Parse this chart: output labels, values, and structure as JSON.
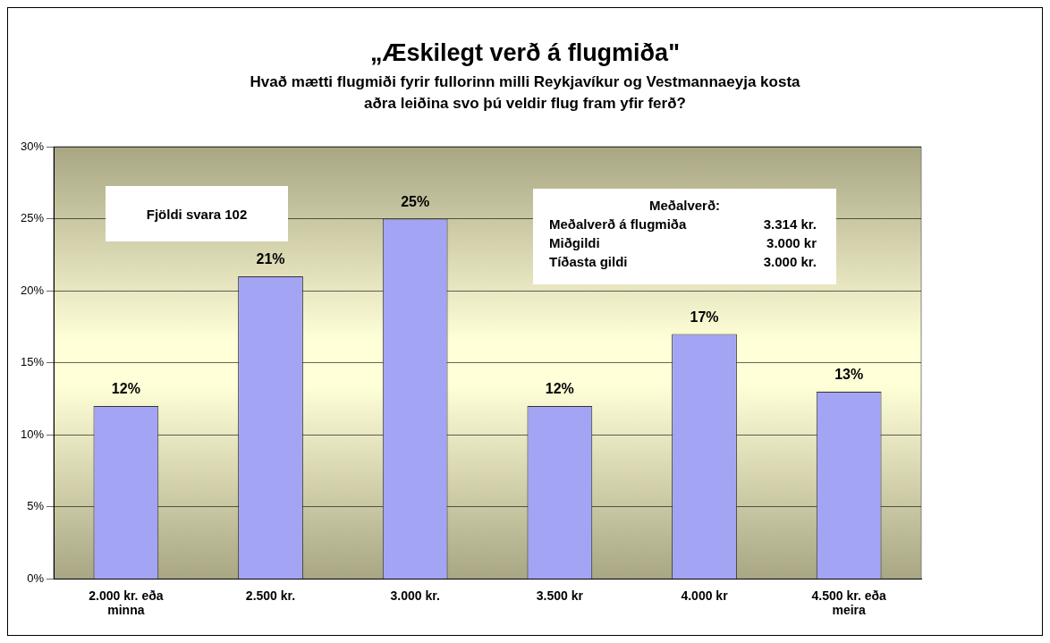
{
  "chart_data": {
    "type": "bar",
    "title": "„Æskilegt verð á flugmiða\"",
    "subtitle": "Hvað mætti flugmiði  fyrir fullorinn milli Reykjavíkur og  Vestmannaeyja kosta\naðra leiðina svo þú veldir flug fram yfir ferð?",
    "categories": [
      "2.000 kr. eða minna",
      "2.500 kr.",
      "3.000 kr.",
      "3.500 kr",
      "4.000 kr",
      "4.500 kr. eða meira"
    ],
    "values": [
      12,
      21,
      25,
      12,
      17,
      13
    ],
    "color": "#a4a4f4",
    "ylim": [
      0,
      30
    ],
    "yticks": [
      {
        "value": 0,
        "label": "0%"
      },
      {
        "value": 5,
        "label": "5%"
      },
      {
        "value": 10,
        "label": "10%"
      },
      {
        "value": 15,
        "label": "15%"
      },
      {
        "value": 20,
        "label": "20%"
      },
      {
        "value": 25,
        "label": "25%"
      },
      {
        "value": 30,
        "label": "30%"
      }
    ],
    "value_labels": [
      "12%",
      "21%",
      "25%",
      "12%",
      "17%",
      "13%"
    ],
    "grid": "y",
    "annotations": [
      "Fjöldi svara 102",
      "Meðalverð:",
      "Meðalverð á flugmiða   3.314 kr.",
      "Miðgildi   3.000 kr",
      "Tíðasta gildi   3.000 kr."
    ]
  }
}
